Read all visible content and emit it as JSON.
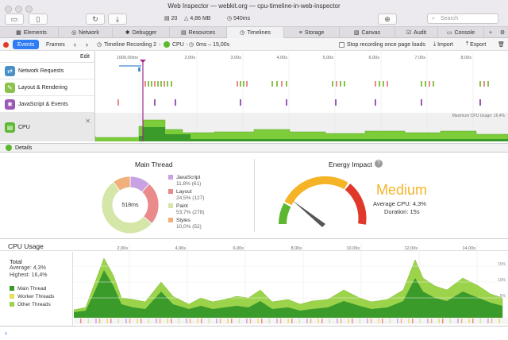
{
  "window": {
    "title": "Web Inspector — webkit.org — cpu-timeline-in-web-inspector",
    "stats": {
      "count": "20",
      "size": "4,86 MB",
      "time": "540ms"
    },
    "search_placeholder": "Search"
  },
  "tabs": [
    {
      "label": "Elements"
    },
    {
      "label": "Network"
    },
    {
      "label": "Debugger"
    },
    {
      "label": "Resources"
    },
    {
      "label": "Timelines"
    },
    {
      "label": "Storage"
    },
    {
      "label": "Canvas"
    },
    {
      "label": "Audit"
    },
    {
      "label": "Console"
    }
  ],
  "toolbar": {
    "events": "Events",
    "frames": "Frames",
    "recording": "Timeline Recording 2",
    "cpu": "CPU",
    "range": "0ms – 15,00s",
    "stop_label": "Stop recording once page loads",
    "import": "Import",
    "export": "Export",
    "edit": "Edit"
  },
  "ruler": [
    "1000,00ms",
    "2,00s",
    "3,00s",
    "4,00s",
    "5,00s",
    "6,00s",
    "7,00s",
    "8,00s"
  ],
  "lanes": [
    {
      "label": "Network Requests",
      "color": "#4a90c8"
    },
    {
      "label": "Layout & Rendering",
      "color": "#8bc34a"
    },
    {
      "label": "JavaScript & Events",
      "color": "#9b59b6"
    },
    {
      "label": "CPU",
      "color": "#5cb82e"
    }
  ],
  "max_cpu_label": "Maximum CPU Usage: 16,4%",
  "details_label": "Details",
  "main_thread": {
    "title": "Main Thread",
    "center": "518ms",
    "items": [
      {
        "name": "JavaScript",
        "value": "11,8% (61)",
        "color": "#c9a2e3",
        "pct": 11.8
      },
      {
        "name": "Layout",
        "value": "24,5% (127)",
        "color": "#e98b8b",
        "pct": 24.5
      },
      {
        "name": "Paint",
        "value": "53,7% (278)",
        "color": "#d4e6a8",
        "pct": 53.7
      },
      {
        "name": "Styles",
        "value": "10,0% (52)",
        "color": "#f0b079",
        "pct": 10.0
      }
    ]
  },
  "energy": {
    "title": "Energy Impact",
    "level": "Medium",
    "avg": "Average CPU: 4,3%",
    "duration": "Duration: 15s",
    "level_color": "#f5b427"
  },
  "cpu_usage": {
    "title": "CPU Usage",
    "total": "Total",
    "average": "Average: 4,3%",
    "highest": "Highest: 16,4%",
    "legend": [
      {
        "name": "Main Thread",
        "color": "#3a9a2a"
      },
      {
        "name": "Worker Threads",
        "color": "#e6e05a"
      },
      {
        "name": "Other Threads",
        "color": "#9bd34a"
      }
    ],
    "ruler": [
      "2,00s",
      "4,00s",
      "6,00s",
      "8,00s",
      "10,00s",
      "12,00s",
      "14,00s"
    ],
    "ticks": [
      "15%",
      "10%",
      "5%"
    ]
  }
}
